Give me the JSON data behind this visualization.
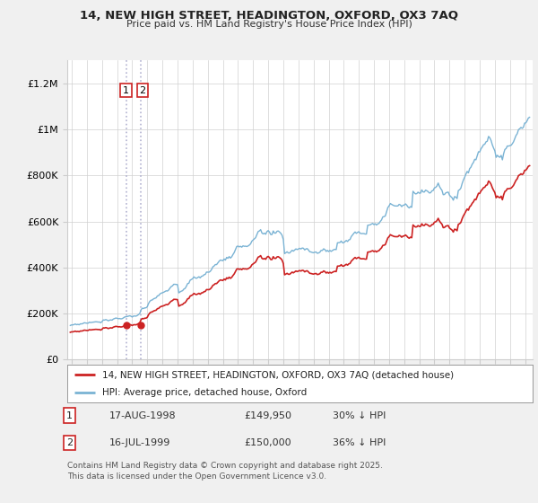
{
  "title": "14, NEW HIGH STREET, HEADINGTON, OXFORD, OX3 7AQ",
  "subtitle": "Price paid vs. HM Land Registry's House Price Index (HPI)",
  "hpi_label": "HPI: Average price, detached house, Oxford",
  "property_label": "14, NEW HIGH STREET, HEADINGTON, OXFORD, OX3 7AQ (detached house)",
  "purchase1_date_num": 1998.63,
  "purchase1_price": 149950,
  "purchase2_date_num": 1999.54,
  "purchase2_price": 150000,
  "ylim": [
    0,
    1300000
  ],
  "xlim_start": 1994.7,
  "xlim_end": 2025.5,
  "hpi_color": "#7ab3d4",
  "property_color": "#cc2222",
  "background_color": "#f0f0f0",
  "plot_bg_color": "#ffffff",
  "footer": "Contains HM Land Registry data © Crown copyright and database right 2025.\nThis data is licensed under the Open Government Licence v3.0.",
  "yticks": [
    0,
    200000,
    400000,
    600000,
    800000,
    1000000,
    1200000
  ],
  "ytick_labels": [
    "£0",
    "£200K",
    "£400K",
    "£600K",
    "£800K",
    "£1M",
    "£1.2M"
  ],
  "xticks": [
    1995,
    1996,
    1997,
    1998,
    1999,
    2000,
    2001,
    2002,
    2003,
    2004,
    2005,
    2006,
    2007,
    2008,
    2009,
    2010,
    2011,
    2012,
    2013,
    2014,
    2015,
    2016,
    2017,
    2018,
    2019,
    2020,
    2021,
    2022,
    2023,
    2024,
    2025
  ]
}
